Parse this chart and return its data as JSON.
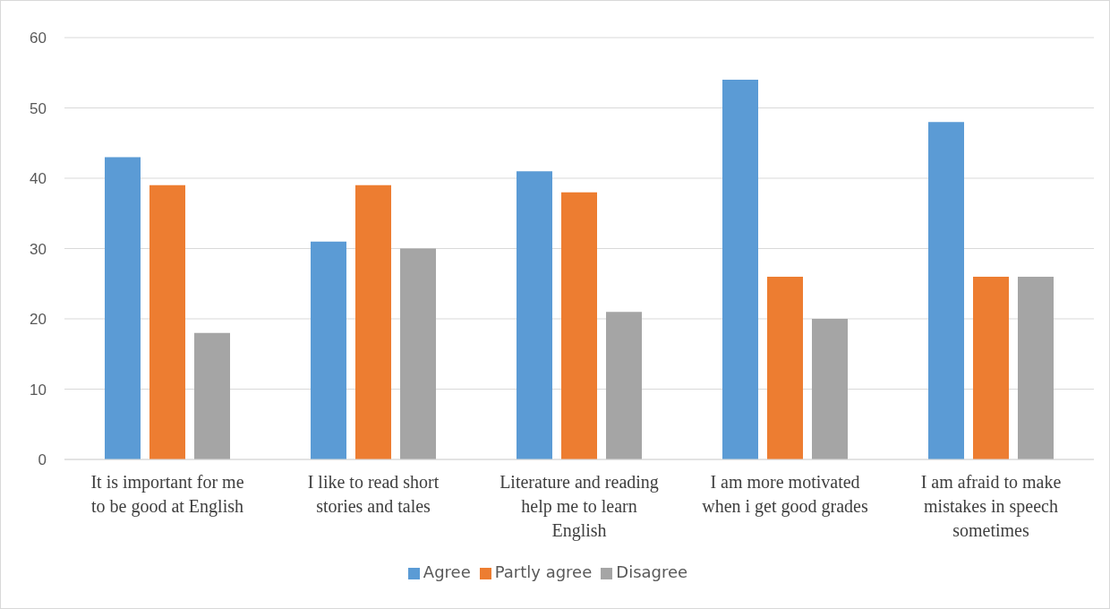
{
  "chart_data": {
    "type": "bar",
    "categories": [
      "It is important for me to be good at English",
      "I like to read short stories and tales",
      "Literature and reading help me to learn English",
      "I am more motivated when i get good grades",
      "I am afraid to make mistakes in speech sometimes"
    ],
    "series": [
      {
        "name": "Agree",
        "color": "#5b9bd5",
        "values": [
          43,
          31,
          41,
          54,
          48
        ]
      },
      {
        "name": "Partly agree",
        "color": "#ed7d31",
        "values": [
          39,
          39,
          38,
          26,
          26
        ]
      },
      {
        "name": "Disagree",
        "color": "#a5a5a5",
        "values": [
          18,
          30,
          21,
          20,
          26
        ]
      }
    ],
    "ylim": [
      0,
      60
    ],
    "yticks": [
      0,
      10,
      20,
      30,
      40,
      50,
      60
    ],
    "grid": "y",
    "legend": "bottom"
  }
}
